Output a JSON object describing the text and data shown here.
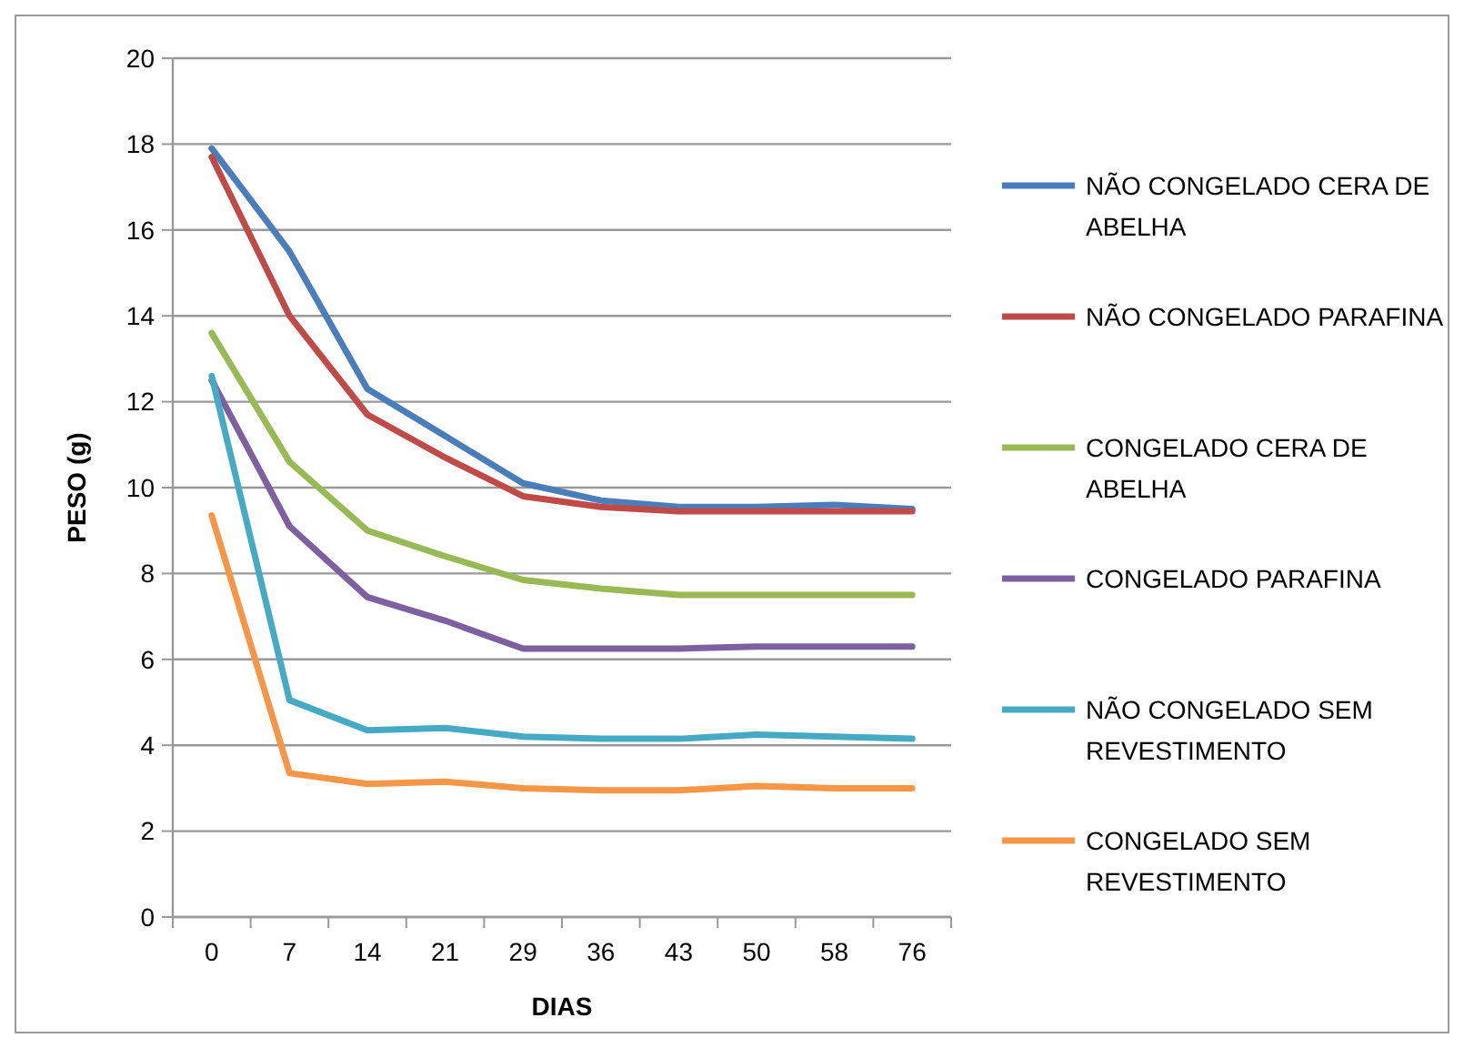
{
  "chart_data": {
    "type": "line",
    "xlabel": "DIAS",
    "ylabel": "PESO (g)",
    "categories": [
      "0",
      "7",
      "14",
      "21",
      "29",
      "36",
      "43",
      "50",
      "58",
      "76"
    ],
    "series": [
      {
        "name": "NÃO CONGELADO CERA DE ABELHA",
        "color": "#4a7ebb",
        "values": [
          17.9,
          15.5,
          12.3,
          11.2,
          10.1,
          9.7,
          9.55,
          9.55,
          9.6,
          9.5
        ]
      },
      {
        "name": "NÃO CONGELADO PARAFINA",
        "color": "#be4b48",
        "values": [
          17.7,
          14.0,
          11.7,
          10.7,
          9.8,
          9.55,
          9.45,
          9.45,
          9.45,
          9.45
        ]
      },
      {
        "name": "CONGELADO CERA DE ABELHA",
        "color": "#98b954",
        "values": [
          13.6,
          10.6,
          9.0,
          8.4,
          7.85,
          7.65,
          7.5,
          7.5,
          7.5,
          7.5
        ]
      },
      {
        "name": "CONGELADO PARAFINA",
        "color": "#7d60a0",
        "values": [
          12.5,
          9.1,
          7.45,
          6.9,
          6.25,
          6.25,
          6.25,
          6.3,
          6.3,
          6.3
        ]
      },
      {
        "name": "NÃO CONGELADO SEM REVESTIMENTO",
        "color": "#46aac5",
        "values": [
          12.6,
          5.05,
          4.35,
          4.4,
          4.2,
          4.15,
          4.15,
          4.25,
          4.2,
          4.15
        ]
      },
      {
        "name": "CONGELADO SEM REVESTIMENTO",
        "color": "#f79646",
        "values": [
          9.35,
          3.35,
          3.1,
          3.15,
          3.0,
          2.95,
          2.95,
          3.05,
          3.0,
          3.0
        ]
      }
    ],
    "ylim": [
      0,
      20
    ],
    "yticks": [
      0,
      2,
      4,
      6,
      8,
      10,
      12,
      14,
      16,
      18,
      20
    ],
    "grid": "y",
    "legend": "right",
    "marker": "none",
    "line_style": "solid"
  }
}
